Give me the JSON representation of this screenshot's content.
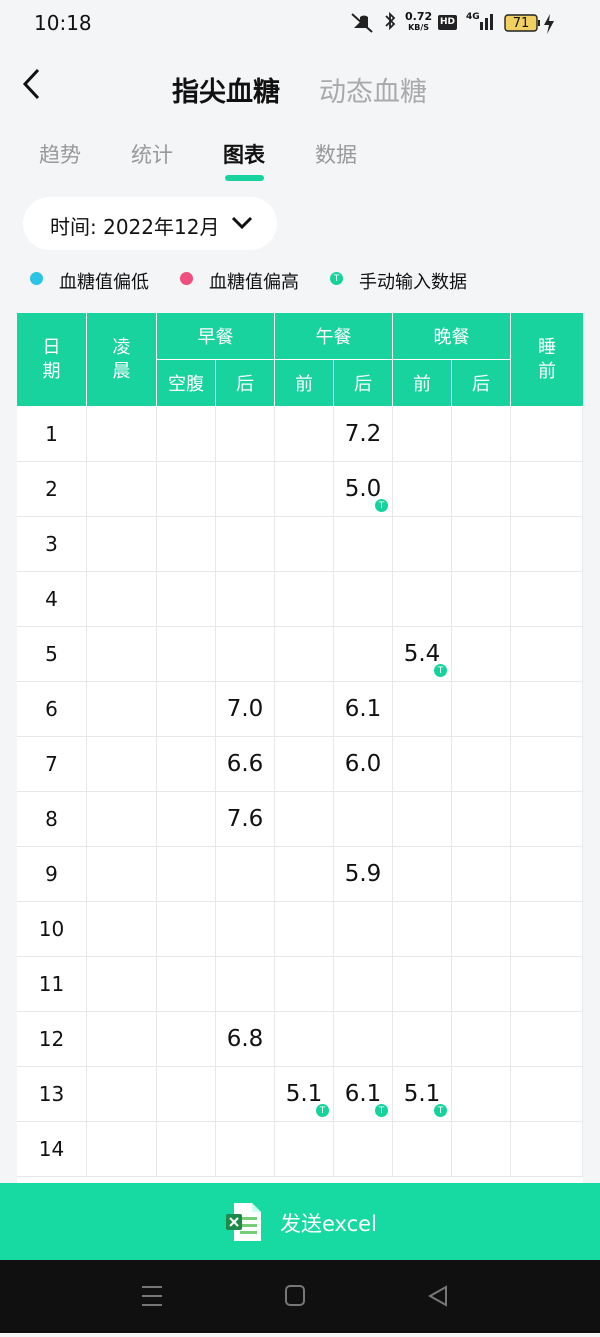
{
  "status_bar": {
    "time": "10:18",
    "speed": "0.72",
    "speed_unit": "KB/S",
    "hd": "HD",
    "network": "4G",
    "battery": "71"
  },
  "header": {
    "tabs": [
      "指尖血糖",
      "动态血糖"
    ],
    "active_tab": 0
  },
  "sub_tabs": {
    "items": [
      "趋势",
      "统计",
      "图表",
      "数据"
    ],
    "active": 2
  },
  "date_selector": {
    "label": "时间: 2022年12月"
  },
  "legend": {
    "items": [
      {
        "label": "血糖值偏低",
        "color": "#2bc4e6"
      },
      {
        "label": "血糖值偏高",
        "color": "#ee4f7e"
      },
      {
        "label": "手动输入数据",
        "color": "#14d39b",
        "badge": "T"
      }
    ]
  },
  "table": {
    "header": {
      "date": "日期",
      "dawn": "凌晨",
      "groups": [
        {
          "label": "早餐",
          "columns": [
            "空腹",
            "后"
          ]
        },
        {
          "label": "午餐",
          "columns": [
            "前",
            "后"
          ]
        },
        {
          "label": "晚餐",
          "columns": [
            "前",
            "后"
          ]
        }
      ],
      "sleep": "睡前"
    },
    "manual_badge": "T",
    "rows": [
      {
        "date": "1",
        "cells": [
          null,
          null,
          null,
          null,
          "7.2",
          null,
          null,
          null
        ]
      },
      {
        "date": "2",
        "cells": [
          null,
          null,
          null,
          null,
          "5.0",
          null,
          null,
          null
        ],
        "manual": [
          4
        ]
      },
      {
        "date": "3",
        "cells": [
          null,
          null,
          null,
          null,
          null,
          null,
          null,
          null
        ]
      },
      {
        "date": "4",
        "cells": [
          null,
          null,
          null,
          null,
          null,
          null,
          null,
          null
        ]
      },
      {
        "date": "5",
        "cells": [
          null,
          null,
          null,
          null,
          null,
          "5.4",
          null,
          null
        ],
        "manual": [
          5
        ]
      },
      {
        "date": "6",
        "cells": [
          null,
          null,
          "7.0",
          null,
          "6.1",
          null,
          null,
          null
        ]
      },
      {
        "date": "7",
        "cells": [
          null,
          null,
          "6.6",
          null,
          "6.0",
          null,
          null,
          null
        ]
      },
      {
        "date": "8",
        "cells": [
          null,
          null,
          "7.6",
          null,
          null,
          null,
          null,
          null
        ]
      },
      {
        "date": "9",
        "cells": [
          null,
          null,
          null,
          null,
          "5.9",
          null,
          null,
          null
        ]
      },
      {
        "date": "10",
        "cells": [
          null,
          null,
          null,
          null,
          null,
          null,
          null,
          null
        ]
      },
      {
        "date": "11",
        "cells": [
          null,
          null,
          null,
          null,
          null,
          null,
          null,
          null
        ]
      },
      {
        "date": "12",
        "cells": [
          null,
          null,
          "6.8",
          null,
          null,
          null,
          null,
          null
        ]
      },
      {
        "date": "13",
        "cells": [
          null,
          null,
          null,
          "5.1",
          "6.1",
          "5.1",
          null,
          null
        ],
        "manual": [
          3,
          4,
          5
        ]
      },
      {
        "date": "14",
        "cells": [
          null,
          null,
          null,
          null,
          null,
          null,
          null,
          null
        ]
      }
    ]
  },
  "footer_button": {
    "label": "发送excel"
  }
}
